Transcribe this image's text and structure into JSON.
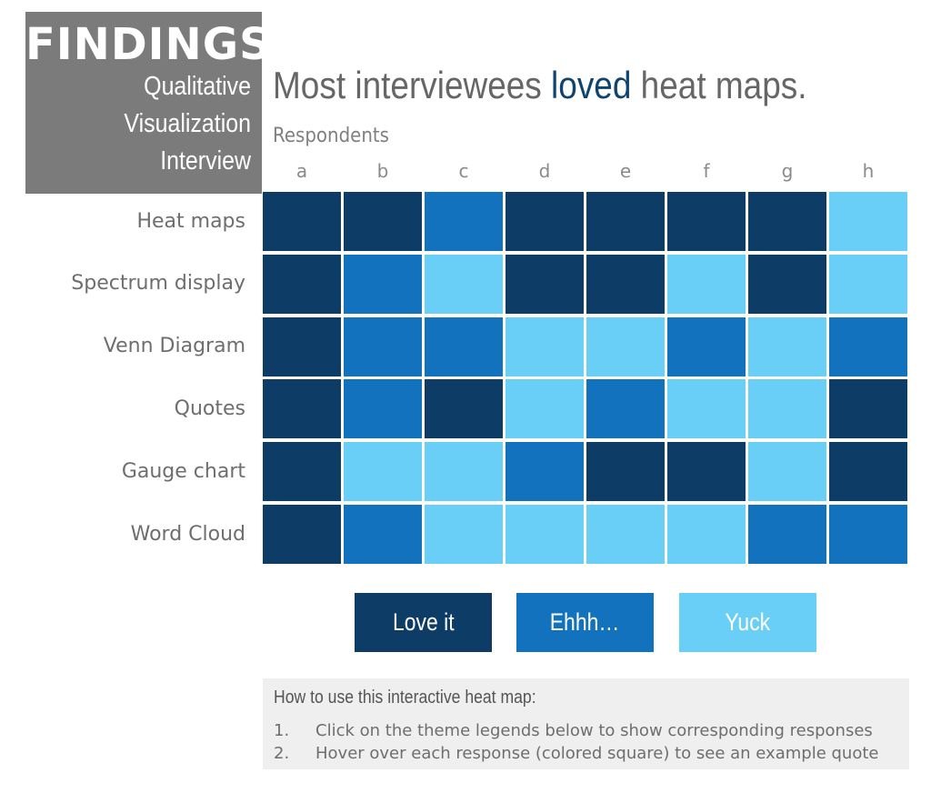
{
  "findings": {
    "title": "FINDINGS",
    "lines": [
      "Qualitative",
      "Visualization",
      "Interview"
    ]
  },
  "headline": {
    "before": "Most interviewees ",
    "accent": "loved",
    "after": " heat maps."
  },
  "colors": {
    "love": "#0d3d66",
    "ehhh": "#1272bd",
    "yuck": "#6acff6",
    "findings_bg": "#7b7b7b",
    "accent_text": "#0f4470"
  },
  "chart_data": {
    "type": "heatmap",
    "title": "Most interviewees loved heat maps.",
    "xlabel": "Respondents",
    "ylabel": "",
    "x": [
      "a",
      "b",
      "c",
      "d",
      "e",
      "f",
      "g",
      "h"
    ],
    "y": [
      "Heat maps",
      "Spectrum display",
      "Venn Diagram",
      "Quotes",
      "Gauge chart",
      "Word Cloud"
    ],
    "categories": [
      "Love it",
      "Ehhh…",
      "Yuck"
    ],
    "values": [
      [
        "Love it",
        "Love it",
        "Ehhh…",
        "Love it",
        "Love it",
        "Love it",
        "Love it",
        "Yuck"
      ],
      [
        "Love it",
        "Ehhh…",
        "Yuck",
        "Love it",
        "Love it",
        "Yuck",
        "Love it",
        "Yuck"
      ],
      [
        "Love it",
        "Ehhh…",
        "Ehhh…",
        "Yuck",
        "Yuck",
        "Ehhh…",
        "Yuck",
        "Ehhh…"
      ],
      [
        "Love it",
        "Ehhh…",
        "Love it",
        "Yuck",
        "Ehhh…",
        "Yuck",
        "Yuck",
        "Love it"
      ],
      [
        "Love it",
        "Yuck",
        "Yuck",
        "Ehhh…",
        "Love it",
        "Love it",
        "Yuck",
        "Love it"
      ],
      [
        "Love it",
        "Ehhh…",
        "Yuck",
        "Yuck",
        "Yuck",
        "Yuck",
        "Ehhh…",
        "Ehhh…"
      ]
    ],
    "legend": [
      {
        "label": "Love it",
        "color": "#0d3d66"
      },
      {
        "label": "Ehhh…",
        "color": "#1272bd"
      },
      {
        "label": "Yuck",
        "color": "#6acff6"
      }
    ],
    "legend_placement": "bottom"
  },
  "howto": {
    "title": "How to use this interactive heat map:",
    "items": [
      {
        "num": "1.",
        "text": "Click on the theme legends below to show corresponding responses"
      },
      {
        "num": "2.",
        "text": "Hover over each response (colored square) to see an example quote"
      }
    ]
  }
}
